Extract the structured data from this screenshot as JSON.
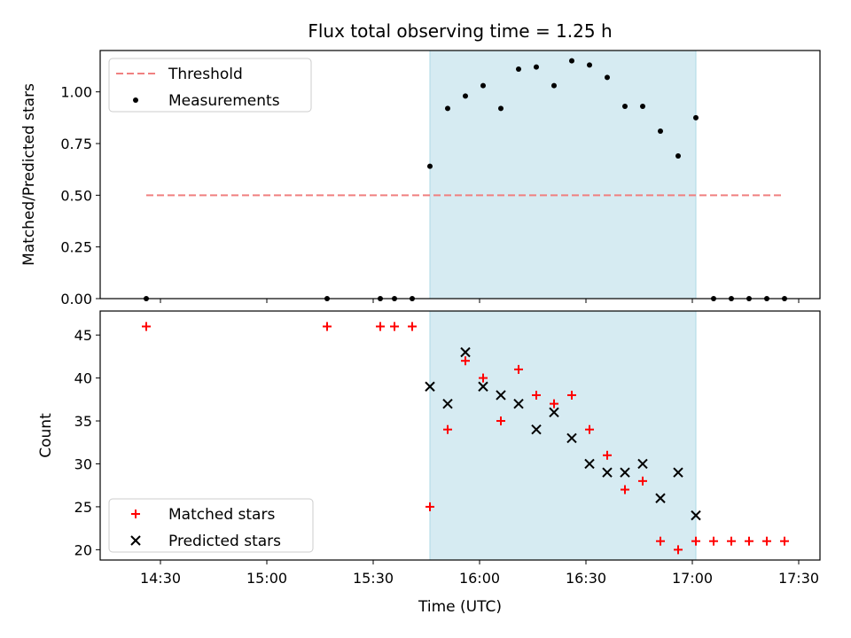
{
  "figure": {
    "title": "Flux total observing time = 1.25 h",
    "xlabel": "Time (UTC)",
    "highlight_color": "#add8e6"
  },
  "chart_data": [
    {
      "type": "scatter",
      "panel": "top",
      "ylabel": "Matched/Predicted stars",
      "ylim": [
        0,
        1.2
      ],
      "yticks": [
        0.0,
        0.25,
        0.5,
        0.75,
        1.0
      ],
      "ytick_labels": [
        "0.00",
        "0.25",
        "0.50",
        "0.75",
        "1.00"
      ],
      "xlim": [
        "14:13",
        "17:36"
      ],
      "grid": false,
      "legend_position": "top-left",
      "highlight_span": [
        "15:46",
        "17:01"
      ],
      "threshold": {
        "name": "Threshold",
        "value": 0.5,
        "x_start": "14:26",
        "x_end": "17:26",
        "color": "#f08080",
        "style": "dashed"
      },
      "series": [
        {
          "name": "Measurements",
          "color": "#000000",
          "marker": "dot",
          "x": [
            "14:26",
            "15:17",
            "15:32",
            "15:36",
            "15:41",
            "15:46",
            "15:51",
            "15:56",
            "16:01",
            "16:06",
            "16:11",
            "16:16",
            "16:21",
            "16:26",
            "16:31",
            "16:36",
            "16:41",
            "16:46",
            "16:51",
            "16:56",
            "17:01",
            "17:06",
            "17:11",
            "17:16",
            "17:21",
            "17:26"
          ],
          "y": [
            0,
            0,
            0,
            0,
            0,
            0.64,
            0.92,
            0.98,
            1.03,
            0.92,
            1.11,
            1.12,
            1.03,
            1.15,
            1.13,
            1.07,
            0.93,
            0.93,
            0.81,
            0.69,
            0.875,
            0,
            0,
            0,
            0,
            0
          ]
        }
      ]
    },
    {
      "type": "scatter",
      "panel": "bottom",
      "ylabel": "Count",
      "ylim": [
        18.8,
        47.8
      ],
      "yticks": [
        20,
        25,
        30,
        35,
        40,
        45
      ],
      "ytick_labels": [
        "20",
        "25",
        "30",
        "35",
        "40",
        "45"
      ],
      "xlim": [
        "14:13",
        "17:36"
      ],
      "xticks": [
        "14:30",
        "15:00",
        "15:30",
        "16:00",
        "16:30",
        "17:00",
        "17:30"
      ],
      "xtick_labels": [
        "14:30",
        "15:00",
        "15:30",
        "16:00",
        "16:30",
        "17:00",
        "17:30"
      ],
      "grid": false,
      "legend_position": "bottom-left",
      "highlight_span": [
        "15:46",
        "17:01"
      ],
      "series": [
        {
          "name": "Matched stars",
          "color": "#ff0000",
          "marker": "plus",
          "x": [
            "14:26",
            "15:17",
            "15:32",
            "15:36",
            "15:41",
            "15:46",
            "15:51",
            "15:56",
            "16:01",
            "16:06",
            "16:11",
            "16:16",
            "16:21",
            "16:26",
            "16:31",
            "16:36",
            "16:41",
            "16:46",
            "16:51",
            "16:56",
            "17:01",
            "17:06",
            "17:11",
            "17:16",
            "17:21",
            "17:26"
          ],
          "y": [
            46,
            46,
            46,
            46,
            46,
            25,
            34,
            42,
            40,
            35,
            41,
            38,
            37,
            38,
            34,
            31,
            27,
            28,
            21,
            20,
            21,
            21,
            21,
            21,
            21,
            21
          ]
        },
        {
          "name": "Predicted stars",
          "color": "#000000",
          "marker": "x",
          "x": [
            "15:46",
            "15:51",
            "15:56",
            "16:01",
            "16:06",
            "16:11",
            "16:16",
            "16:21",
            "16:26",
            "16:31",
            "16:36",
            "16:41",
            "16:46",
            "16:51",
            "16:56",
            "17:01"
          ],
          "y": [
            39,
            37,
            43,
            39,
            38,
            37,
            34,
            36,
            33,
            30,
            29,
            29,
            30,
            26,
            29,
            24
          ]
        }
      ]
    }
  ]
}
